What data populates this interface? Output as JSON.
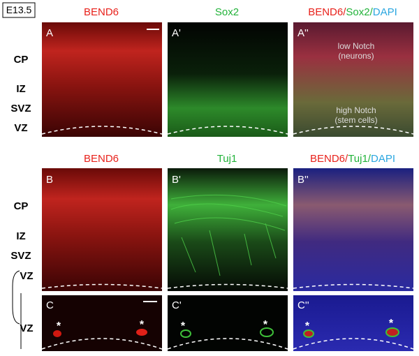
{
  "stage": "E13.5",
  "row_a": {
    "headers": [
      "BEND6",
      "Sox2"
    ],
    "merged": [
      "BEND6/",
      "Sox2/",
      "DAPI"
    ],
    "panels": [
      "A",
      "A'",
      "A''"
    ],
    "regions": [
      "CP",
      "IZ",
      "SVZ",
      "VZ"
    ]
  },
  "row_b": {
    "headers": [
      "BEND6",
      "Tuj1"
    ],
    "merged": [
      "BEND6/",
      "Tuj1/",
      "DAPI"
    ],
    "panels": [
      "B",
      "B'",
      "B''"
    ],
    "regions": [
      "CP",
      "IZ",
      "SVZ",
      "VZ"
    ]
  },
  "row_c": {
    "panels": [
      "C",
      "C'",
      "C''"
    ],
    "regions": [
      "VZ"
    ],
    "asterisks": [
      "*",
      "*",
      "*",
      "*",
      "*",
      "*"
    ]
  },
  "annotations": [
    "low Notch",
    "(neurons)",
    "high Notch",
    "(stem cells)"
  ]
}
